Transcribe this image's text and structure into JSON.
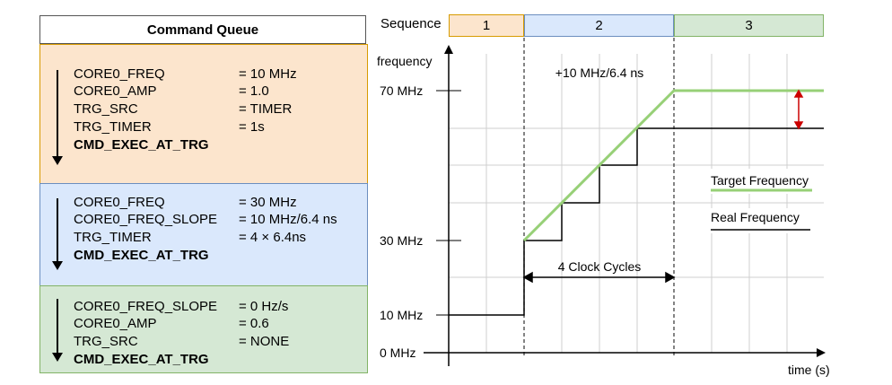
{
  "queue": {
    "title": "Command Queue",
    "blocks": [
      {
        "color": "#fce5cd",
        "border": "#d79b00",
        "rows": [
          {
            "key": "CORE0_FREQ",
            "value": "= 10 MHz"
          },
          {
            "key": "CORE0_AMP",
            "value": "= 1.0"
          },
          {
            "key": "TRG_SRC",
            "value": "= TIMER"
          },
          {
            "key": "TRG_TIMER",
            "value": "= 1s"
          },
          {
            "key": "CMD_EXEC_AT_TRG",
            "value": ""
          }
        ]
      },
      {
        "color": "#dae8fc",
        "border": "#6c8ebf",
        "rows": [
          {
            "key": "CORE0_FREQ",
            "value": "= 30 MHz"
          },
          {
            "key": "CORE0_FREQ_SLOPE",
            "value": "= 10 MHz/6.4 ns"
          },
          {
            "key": "TRG_TIMER",
            "value": "= 4 × 6.4ns"
          },
          {
            "key": "CMD_EXEC_AT_TRG",
            "value": ""
          }
        ]
      },
      {
        "color": "#d5e8d4",
        "border": "#82b366",
        "rows": [
          {
            "key": "CORE0_FREQ_SLOPE",
            "value": "= 0 Hz/s"
          },
          {
            "key": "CORE0_AMP",
            "value": "= 0.6"
          },
          {
            "key": "TRG_SRC",
            "value": "= NONE"
          },
          {
            "key": "CMD_EXEC_AT_TRG",
            "value": ""
          }
        ]
      }
    ]
  },
  "sequence": {
    "label": "Sequence",
    "cells": [
      {
        "label": "1",
        "color": "#fce5cd",
        "border": "#d79b00"
      },
      {
        "label": "2",
        "color": "#dae8fc",
        "border": "#6c8ebf"
      },
      {
        "label": "3",
        "color": "#d5e8d4",
        "border": "#82b366"
      }
    ]
  },
  "graph": {
    "y_axis_label": "frequency",
    "x_axis_label": "time (s)",
    "y_ticks": [
      "70 MHz",
      "30 MHz",
      "10 MHz",
      "0 MHz"
    ],
    "slope_annotation": "+10 MHz/6.4 ns",
    "clock_annotation": "4 Clock Cycles",
    "legend_target": "Target Frequency",
    "legend_real": "Real Frequency",
    "target_color": "#97d077",
    "real_color": "#000000",
    "marker_color": "#cc0000"
  }
}
